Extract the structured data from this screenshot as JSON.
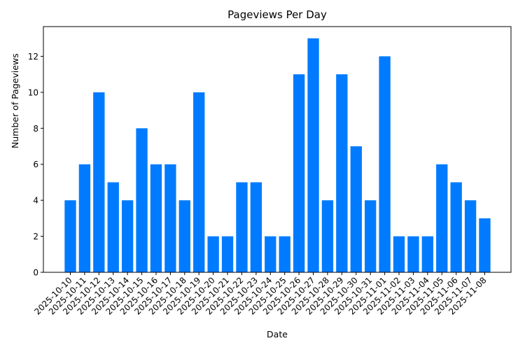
{
  "chart_data": {
    "type": "bar",
    "title": "Pageviews Per Day",
    "xlabel": "Date",
    "ylabel": "Number of Pageviews",
    "ylim": [
      0,
      13.65
    ],
    "yticks": [
      0,
      2,
      4,
      6,
      8,
      10,
      12
    ],
    "grid": false,
    "legend": null,
    "bar_color": "#007bff",
    "categories": [
      "2025-10-10",
      "2025-10-11",
      "2025-10-12",
      "2025-10-13",
      "2025-10-14",
      "2025-10-15",
      "2025-10-16",
      "2025-10-17",
      "2025-10-18",
      "2025-10-19",
      "2025-10-20",
      "2025-10-21",
      "2025-10-22",
      "2025-10-23",
      "2025-10-24",
      "2025-10-25",
      "2025-10-26",
      "2025-10-27",
      "2025-10-28",
      "2025-10-29",
      "2025-10-30",
      "2025-10-31",
      "2025-11-01",
      "2025-11-02",
      "2025-11-03",
      "2025-11-04",
      "2025-11-05",
      "2025-11-06",
      "2025-11-07",
      "2025-11-08"
    ],
    "values": [
      4,
      6,
      10,
      5,
      4,
      8,
      6,
      6,
      4,
      10,
      2,
      2,
      5,
      5,
      2,
      2,
      11,
      13,
      4,
      11,
      7,
      4,
      12,
      2,
      2,
      2,
      6,
      5,
      4,
      3
    ]
  }
}
